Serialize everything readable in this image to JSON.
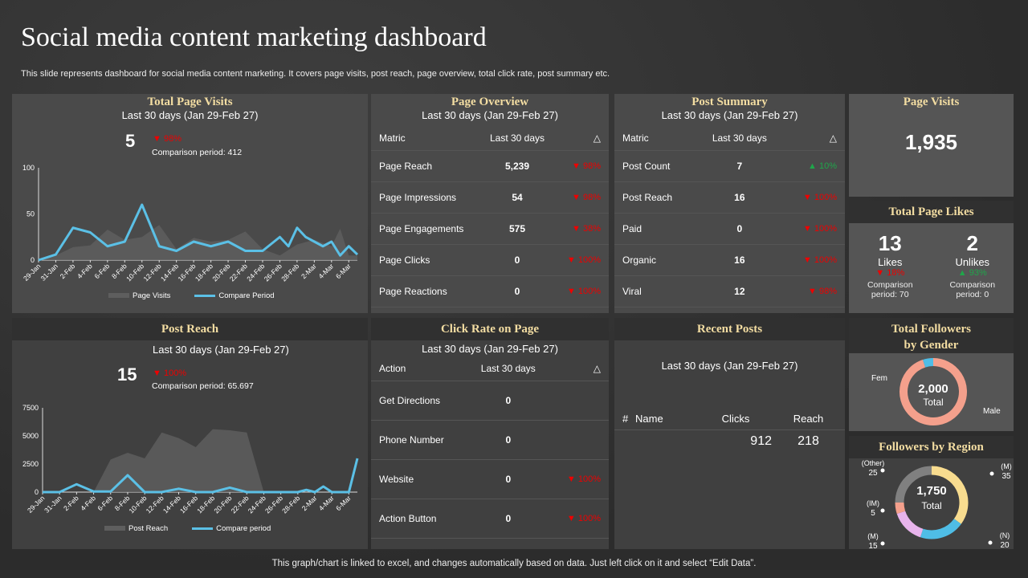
{
  "title": "Social media content marketing dashboard",
  "subtitle": "This slide represents dashboard for social media content marketing. It covers  page visits, post reach, page overview, total click rate, post summary etc.",
  "footer": "This graph/chart is linked to excel,  and changes automatically based on data. Just left click on it and select “Edit Data”.",
  "range_label": "Last 30 days (Jan 29-Feb 27)",
  "colors": {
    "accent_title": "#f3dda2",
    "line": "#5bc0e6",
    "area": "#5e5e5e",
    "down": "#e00000",
    "up": "#1fa64a"
  },
  "total_page_visits": {
    "title": "Total Page Visits",
    "value": "5",
    "change": "98%",
    "direction": "down",
    "comparison": "Comparison period: 412"
  },
  "post_reach": {
    "title": "Post Reach",
    "value": "15",
    "change": "100%",
    "direction": "down",
    "comparison": "Comparison period: 65.697"
  },
  "page_overview": {
    "title": "Page Overview",
    "headers": [
      "Matric",
      "Last 30 days",
      "△"
    ],
    "rows": [
      {
        "metric": "Page Reach",
        "value": "5,239",
        "change": "▼ 98%",
        "dir": "down"
      },
      {
        "metric": "Page Impressions",
        "value": "54",
        "change": "▼ 98%",
        "dir": "down"
      },
      {
        "metric": "Page Engagements",
        "value": "575",
        "change": "▼ 38%",
        "dir": "down"
      },
      {
        "metric": "Page Clicks",
        "value": "0",
        "change": "▼ 100%",
        "dir": "down"
      },
      {
        "metric": "Page Reactions",
        "value": "0",
        "change": "▼ 100%",
        "dir": "down"
      }
    ]
  },
  "post_summary": {
    "title": "Post Summary",
    "headers": [
      "Matric",
      "Last 30 days",
      "△"
    ],
    "rows": [
      {
        "metric": "Post Count",
        "value": "7",
        "change": "▲ 10%",
        "dir": "up"
      },
      {
        "metric": "Post Reach",
        "value": "16",
        "change": "▼ 100%",
        "dir": "down"
      },
      {
        "metric": "Paid",
        "value": "0",
        "change": "▼ 100%",
        "dir": "down"
      },
      {
        "metric": "Organic",
        "value": "16",
        "change": "▼ 100%",
        "dir": "down"
      },
      {
        "metric": "Viral",
        "value": "12",
        "change": "▼ 98%",
        "dir": "down"
      }
    ]
  },
  "page_visits": {
    "title": "Page Visits",
    "value": "1,935"
  },
  "page_likes": {
    "title": "Total Page Likes",
    "likes": {
      "value": "13",
      "label": "Likes",
      "change": "▼ 18%",
      "comparison": "Comparison period: 70"
    },
    "unlikes": {
      "value": "2",
      "label": "Unlikes",
      "change": "▲ 93%",
      "comparison": "Comparison period: 0"
    }
  },
  "click_rate": {
    "title": "Click Rate on Page",
    "headers": [
      "Action",
      "Last 30 days",
      "△"
    ],
    "rows": [
      {
        "metric": "Get Directions",
        "value": "0",
        "change": ""
      },
      {
        "metric": "Phone Number",
        "value": "0",
        "change": ""
      },
      {
        "metric": "Website",
        "value": "0",
        "change": "▼ 100%"
      },
      {
        "metric": "Action Button",
        "value": "0",
        "change": "▼ 100%"
      }
    ]
  },
  "recent_posts": {
    "title": "Recent Posts",
    "headers": [
      "#",
      "Name",
      "Clicks",
      "Reach"
    ],
    "rows": [
      {
        "num": "",
        "name": "",
        "clicks": "912",
        "reach": "218"
      }
    ]
  },
  "gender": {
    "title_line1": "Total Followers",
    "title_line2": "by Gender",
    "total": "2,000",
    "total_label": "Total",
    "labels": [
      "Fem",
      "Male"
    ],
    "segments": [
      {
        "label": "Male",
        "share": 95,
        "color": "#f4a08c"
      },
      {
        "label": "Fem",
        "share": 5,
        "color": "#4fbde6"
      }
    ]
  },
  "region": {
    "title": "Followers  by Region",
    "total": "1,750",
    "total_label": "Total",
    "segments": [
      {
        "label": "(M)",
        "value": 35,
        "color": "#f8dc8f"
      },
      {
        "label": "(N)",
        "value": 20,
        "color": "#4fbde6"
      },
      {
        "label": "(M)",
        "value": 15,
        "color": "#e8b4ec"
      },
      {
        "label": "(IM)",
        "value": 5,
        "color": "#f4a08c"
      },
      {
        "label": "(Other)",
        "value": 25,
        "color": "#808080"
      }
    ]
  },
  "chart_data": [
    {
      "type": "area+line",
      "ylim": [
        0,
        100
      ],
      "yticks": [
        0,
        50,
        100
      ],
      "xticks": [
        "29-Jan",
        "31-Jan",
        "2-Feb",
        "4-Feb",
        "6-Feb",
        "8-Feb",
        "10-Feb",
        "12-Feb",
        "14-Feb",
        "16-Feb",
        "18-Feb",
        "20-Feb",
        "22-Feb",
        "24-Feb",
        "26-Feb",
        "28-Feb",
        "2-Mar",
        "4-Mar",
        "6-Mar"
      ],
      "series": [
        {
          "name": "Page Visits",
          "type": "area",
          "points": [
            [
              "29-Jan",
              0
            ],
            [
              "31-Jan",
              5
            ],
            [
              "2-Feb",
              14
            ],
            [
              "4-Feb",
              16
            ],
            [
              "6-Feb",
              33
            ],
            [
              "8-Feb",
              22
            ],
            [
              "10-Feb",
              25
            ],
            [
              "12-Feb",
              38
            ],
            [
              "14-Feb",
              12
            ],
            [
              "16-Feb",
              24
            ],
            [
              "18-Feb",
              20
            ],
            [
              "20-Feb",
              22
            ],
            [
              "22-Feb",
              31
            ],
            [
              "24-Feb",
              12
            ],
            [
              "26-Feb",
              5
            ],
            [
              "28-Feb",
              17
            ],
            [
              "2-Mar",
              22
            ],
            [
              "4-Mar",
              15
            ],
            [
              "5-Mar",
              34
            ],
            [
              "6-Mar",
              5
            ],
            [
              "7-Mar",
              5
            ]
          ]
        },
        {
          "name": "Compare Period",
          "type": "line",
          "points": [
            [
              "29-Jan",
              0
            ],
            [
              "31-Jan",
              6
            ],
            [
              "2-Feb",
              35
            ],
            [
              "4-Feb",
              30
            ],
            [
              "6-Feb",
              15
            ],
            [
              "8-Feb",
              20
            ],
            [
              "10-Feb",
              60
            ],
            [
              "12-Feb",
              15
            ],
            [
              "14-Feb",
              10
            ],
            [
              "16-Feb",
              20
            ],
            [
              "18-Feb",
              15
            ],
            [
              "20-Feb",
              20
            ],
            [
              "22-Feb",
              10
            ],
            [
              "24-Feb",
              10
            ],
            [
              "26-Feb",
              25
            ],
            [
              "27-Feb",
              15
            ],
            [
              "28-Feb",
              35
            ],
            [
              "1-Mar",
              25
            ],
            [
              "2-Mar",
              20
            ],
            [
              "3-Mar",
              15
            ],
            [
              "4-Mar",
              20
            ],
            [
              "5-Mar",
              5
            ],
            [
              "6-Mar",
              15
            ],
            [
              "7-Mar",
              6
            ]
          ]
        }
      ]
    },
    {
      "type": "area+line",
      "ylim": [
        0,
        7500
      ],
      "yticks": [
        0,
        2500,
        5000,
        7500
      ],
      "xticks": [
        "29-Jan",
        "31-Jan",
        "2-Feb",
        "4-Feb",
        "6-Feb",
        "8-Feb",
        "10-Feb",
        "12-Feb",
        "14-Feb",
        "16-Feb",
        "18-Feb",
        "20-Feb",
        "22-Feb",
        "24-Feb",
        "26-Feb",
        "28-Feb",
        "2-Mar",
        "4-Mar",
        "6-Mar"
      ],
      "series": [
        {
          "name": "Post Reach",
          "type": "area",
          "points": [
            [
              "29-Jan",
              0
            ],
            [
              "4-Feb",
              0
            ],
            [
              "6-Feb",
              2900
            ],
            [
              "8-Feb",
              3500
            ],
            [
              "10-Feb",
              3000
            ],
            [
              "12-Feb",
              5300
            ],
            [
              "14-Feb",
              4800
            ],
            [
              "16-Feb",
              4000
            ],
            [
              "18-Feb",
              5600
            ],
            [
              "20-Feb",
              5500
            ],
            [
              "22-Feb",
              5300
            ],
            [
              "24-Feb",
              0
            ],
            [
              "7-Mar",
              0
            ]
          ]
        },
        {
          "name": "Compare period",
          "type": "line",
          "points": [
            [
              "29-Jan",
              0
            ],
            [
              "31-Jan",
              0
            ],
            [
              "2-Feb",
              700
            ],
            [
              "4-Feb",
              50
            ],
            [
              "6-Feb",
              50
            ],
            [
              "8-Feb",
              1500
            ],
            [
              "10-Feb",
              0
            ],
            [
              "12-Feb",
              0
            ],
            [
              "14-Feb",
              300
            ],
            [
              "16-Feb",
              0
            ],
            [
              "18-Feb",
              0
            ],
            [
              "20-Feb",
              400
            ],
            [
              "22-Feb",
              0
            ],
            [
              "28-Feb",
              0
            ],
            [
              "1-Mar",
              200
            ],
            [
              "2-Mar",
              0
            ],
            [
              "3-Mar",
              500
            ],
            [
              "4-Mar",
              0
            ],
            [
              "6-Mar",
              0
            ],
            [
              "7-Mar",
              3000
            ]
          ]
        }
      ]
    }
  ]
}
